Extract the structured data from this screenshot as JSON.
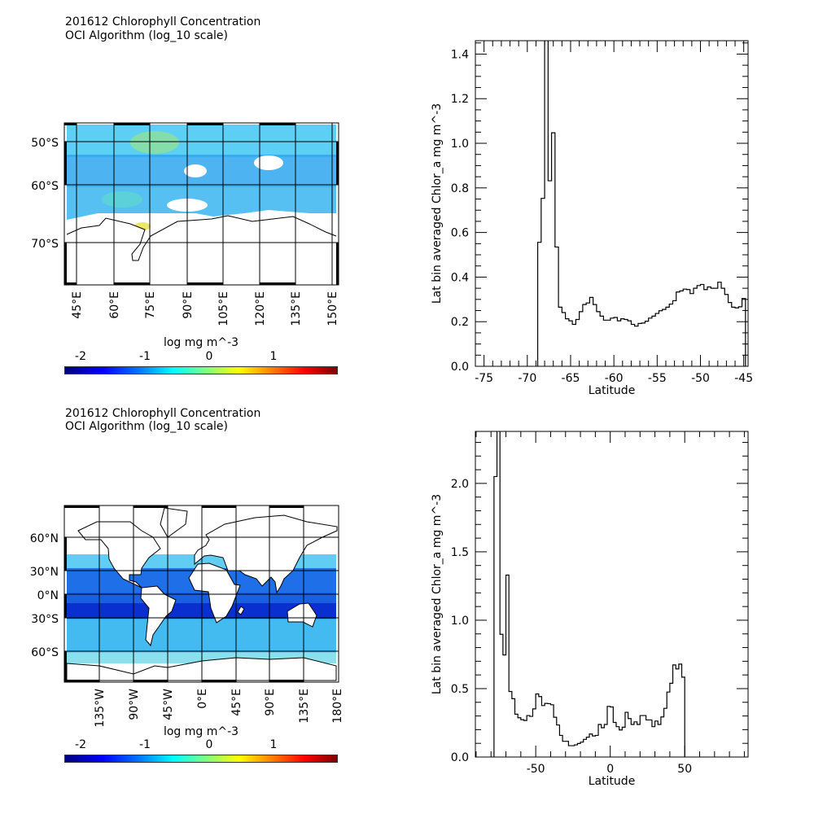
{
  "panels": [
    {
      "title_line1": "201612 Chlorophyll Concentration",
      "title_line2": "OCI Algorithm (log_10 scale)",
      "map_lat_labels": [
        "50°S",
        "60°S",
        "70°S"
      ],
      "map_lon_labels": [
        "45°E",
        "60°E",
        "75°E",
        "90°E",
        "105°E",
        "120°E",
        "135°E",
        "150°E"
      ],
      "colorbar_title": "log mg m^-3",
      "colorbar_ticks": [
        "-2",
        "-1",
        "0",
        "1"
      ]
    },
    {
      "title_line1": "201612 Chlorophyll Concentration",
      "title_line2": "OCI Algorithm (log_10 scale)",
      "map_lat_labels": [
        "60°N",
        "30°N",
        "0°N",
        "30°S",
        "60°S"
      ],
      "map_lon_labels": [
        "135°W",
        "90°W",
        "45°W",
        "0°E",
        "45°E",
        "90°E",
        "135°E",
        "180°E"
      ],
      "colorbar_title": "log mg m^-3",
      "colorbar_ticks": [
        "-2",
        "-1",
        "0",
        "1"
      ]
    }
  ],
  "colorbar_colors": [
    "#00007f",
    "#0000ff",
    "#007fff",
    "#00ffff",
    "#7fff7f",
    "#ffff00",
    "#ff7f00",
    "#ff0000",
    "#7f0000"
  ],
  "chart_data": [
    {
      "type": "step-histogram",
      "xlabel": "Latitude",
      "ylabel": "Lat bin averaged Chlor_a mg m^-3",
      "xlim": [
        -76,
        -44.5
      ],
      "ylim": [
        0,
        1.46
      ],
      "xticks": [
        -75,
        -70,
        -65,
        -60,
        -55,
        -50,
        -45
      ],
      "yticks": [
        0.0,
        0.2,
        0.4,
        0.6,
        0.8,
        1.0,
        1.2,
        1.4
      ],
      "ytick_labels": [
        "0.0",
        "0.2",
        "0.4",
        "0.6",
        "0.8",
        "1.0",
        "1.2",
        "1.4"
      ],
      "bin_width": 0.4,
      "x": [
        -68.6,
        -68.2,
        -67.8,
        -67.4,
        -67.0,
        -66.6,
        -66.2,
        -65.8,
        -65.4,
        -65.0,
        -64.6,
        -64.2,
        -63.8,
        -63.4,
        -63.0,
        -62.6,
        -62.2,
        -61.8,
        -61.4,
        -61.0,
        -60.6,
        -60.2,
        -59.8,
        -59.4,
        -59.0,
        -58.6,
        -58.2,
        -57.8,
        -57.4,
        -57.0,
        -56.6,
        -56.2,
        -55.8,
        -55.4,
        -55.0,
        -54.6,
        -54.2,
        -53.8,
        -53.4,
        -53.0,
        -52.6,
        -52.2,
        -51.8,
        -51.4,
        -51.0,
        -50.6,
        -50.2,
        -49.8,
        -49.4,
        -49.0,
        -48.6,
        -48.2,
        -47.8,
        -47.4,
        -47.0,
        -46.6,
        -46.2,
        -45.8,
        -45.4,
        -45.0
      ],
      "values": [
        0.556,
        0.753,
        1.6,
        0.832,
        1.047,
        0.535,
        0.265,
        0.241,
        0.213,
        0.204,
        0.188,
        0.21,
        0.245,
        0.277,
        0.284,
        0.309,
        0.277,
        0.245,
        0.225,
        0.207,
        0.207,
        0.216,
        0.219,
        0.204,
        0.213,
        0.21,
        0.204,
        0.188,
        0.18,
        0.192,
        0.194,
        0.202,
        0.216,
        0.225,
        0.237,
        0.249,
        0.255,
        0.265,
        0.279,
        0.294,
        0.333,
        0.338,
        0.346,
        0.344,
        0.326,
        0.35,
        0.362,
        0.367,
        0.344,
        0.356,
        0.35,
        0.35,
        0.377,
        0.35,
        0.322,
        0.286,
        0.265,
        0.262,
        0.267,
        0.304
      ]
    },
    {
      "type": "step-histogram",
      "xlabel": "Latitude",
      "ylabel": "Lat bin averaged Chlor_a mg m^-3",
      "xlim": [
        -90.5,
        92.5
      ],
      "ylim": [
        0,
        2.38
      ],
      "xticks": [
        -50,
        0,
        50
      ],
      "yticks": [
        0.0,
        0.5,
        1.0,
        1.5,
        2.0
      ],
      "ytick_labels": [
        "0.0",
        "0.5",
        "1.0",
        "1.5",
        "2.0"
      ],
      "bin_width": 2,
      "x": [
        -77,
        -75,
        -73,
        -71,
        -69,
        -67,
        -65,
        -63,
        -61,
        -59,
        -57,
        -55,
        -53,
        -51,
        -49,
        -47,
        -45,
        -43,
        -41,
        -39,
        -37,
        -35,
        -33,
        -31,
        -29,
        -27,
        -25,
        -23,
        -21,
        -19,
        -17,
        -15,
        -13,
        -11,
        -9,
        -7,
        -5,
        -3,
        -1,
        1,
        3,
        5,
        7,
        9,
        11,
        13,
        15,
        17,
        19,
        21,
        23,
        25,
        27,
        29,
        31,
        33,
        35,
        37,
        39,
        41,
        43,
        45,
        47,
        49
      ],
      "values": [
        2.05,
        2.6,
        0.897,
        0.746,
        1.33,
        0.479,
        0.426,
        0.313,
        0.287,
        0.273,
        0.267,
        0.303,
        0.297,
        0.352,
        0.461,
        0.442,
        0.376,
        0.392,
        0.39,
        0.382,
        0.291,
        0.234,
        0.158,
        0.115,
        0.115,
        0.083,
        0.083,
        0.089,
        0.099,
        0.109,
        0.129,
        0.145,
        0.168,
        0.154,
        0.158,
        0.238,
        0.214,
        0.238,
        0.37,
        0.366,
        0.253,
        0.222,
        0.198,
        0.218,
        0.327,
        0.281,
        0.238,
        0.257,
        0.238,
        0.303,
        0.303,
        0.271,
        0.271,
        0.222,
        0.263,
        0.238,
        0.293,
        0.356,
        0.475,
        0.539,
        0.673,
        0.644,
        0.679,
        0.584
      ]
    }
  ]
}
